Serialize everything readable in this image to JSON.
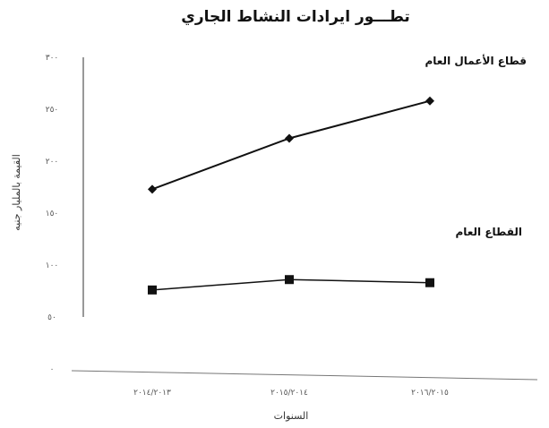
{
  "chart_data": {
    "type": "line",
    "title": "تطـــور ايرادات النشاط الجاري",
    "xlabel": "السنوات",
    "ylabel": "القيمة بالمليار جنيه",
    "categories": [
      "٢٠١٤/٢٠١٣",
      "٢٠١٥/٢٠١٤",
      "٢٠١٦/٢٠١٥"
    ],
    "yticks": [
      0,
      50,
      100,
      150,
      200,
      250,
      300
    ],
    "ytick_labels": [
      "٠",
      "٥٠",
      "١٠٠",
      "١٥٠",
      "٢٠٠",
      "٢٥٠",
      "٣٠٠"
    ],
    "ylim": [
      0,
      300
    ],
    "grid": false,
    "series": [
      {
        "name": "قطاع الأعمال العام",
        "values": [
          173,
          222,
          258
        ],
        "marker": "diamond",
        "color": "#111111"
      },
      {
        "name": "القطاع العام",
        "values": [
          76,
          86,
          83
        ],
        "marker": "square",
        "color": "#111111"
      }
    ]
  }
}
